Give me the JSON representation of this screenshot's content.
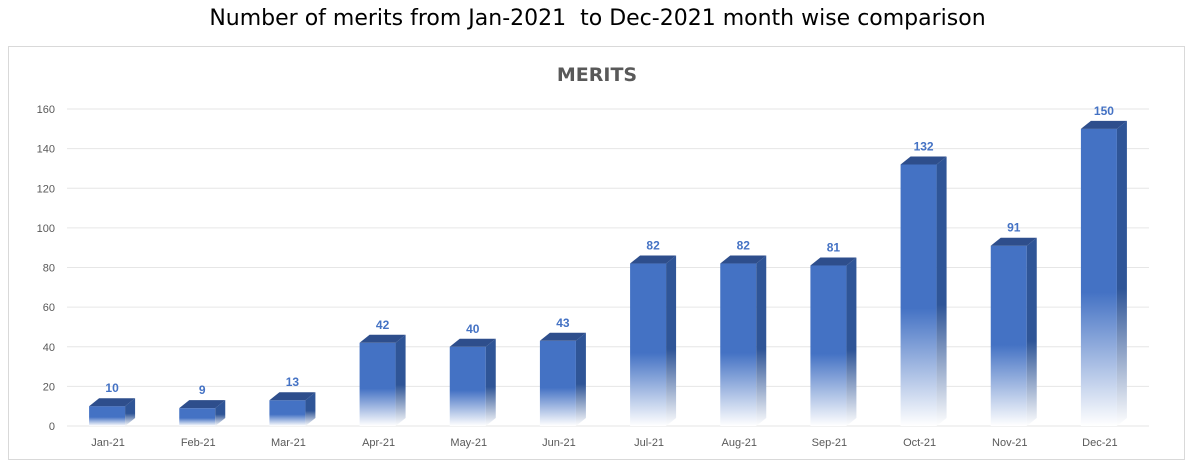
{
  "page_title": "Number of merits from Jan-2021  to Dec-2021 month wise comparison",
  "chart_data": {
    "type": "bar",
    "title": "MERITS",
    "xlabel": "",
    "ylabel": "",
    "categories": [
      "Jan-21",
      "Feb-21",
      "Mar-21",
      "Apr-21",
      "May-21",
      "Jun-21",
      "Jul-21",
      "Aug-21",
      "Sep-21",
      "Oct-21",
      "Nov-21",
      "Dec-21"
    ],
    "values": [
      10,
      9,
      13,
      42,
      40,
      43,
      82,
      82,
      81,
      132,
      91,
      150
    ],
    "ylim": [
      0,
      160
    ],
    "yticks": [
      0,
      20,
      40,
      60,
      80,
      100,
      120,
      140,
      160
    ],
    "grid": true,
    "legend": "none",
    "bar_color": "#4472C4",
    "bar_side_color": "#2F5597",
    "bar_top_color": "#2E4E8C",
    "label_color": "#4472C4",
    "gridline_color": "#E6E6E6"
  }
}
